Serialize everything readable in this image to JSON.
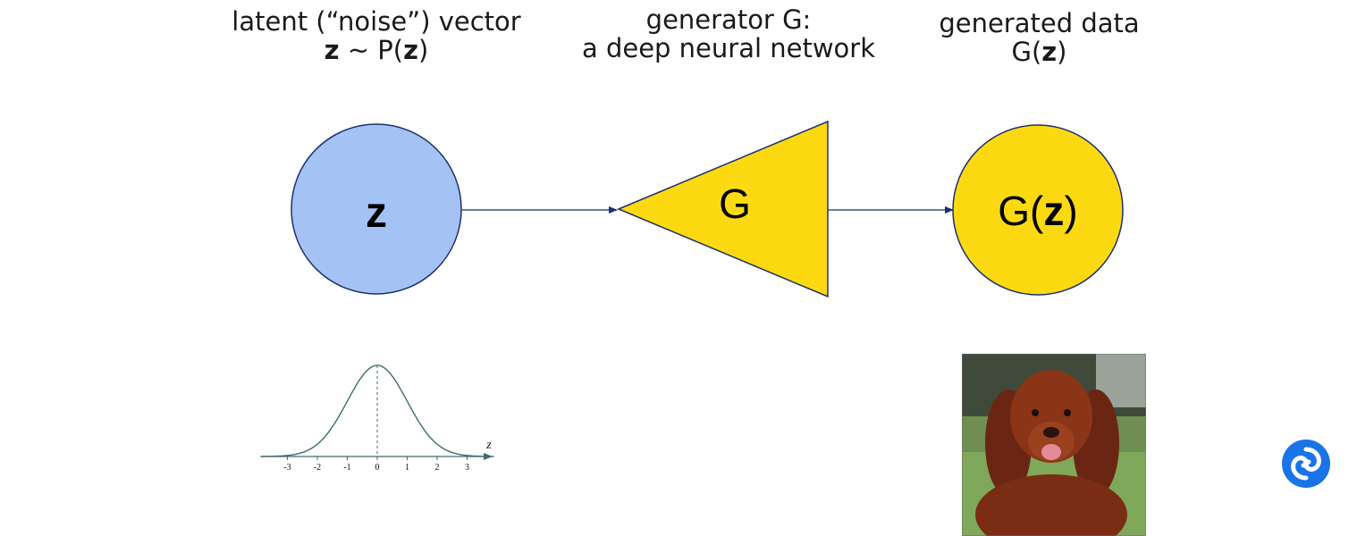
{
  "captions": {
    "latent_line1": "latent (“noise”) vector",
    "latent_line2_bold1": "z",
    "latent_line2_mid": " ~ P(",
    "latent_line2_bold2": "z",
    "latent_line2_end": ")",
    "generator_line1": "generator G:",
    "generator_line2": "a deep neural network",
    "generated_line1": "generated data",
    "generated_line2_start": "G(",
    "generated_line2_bold": "z",
    "generated_line2_end": ")"
  },
  "nodes": {
    "z_label": "z",
    "g_label": "G",
    "gz_start": "G(",
    "gz_bold": "z",
    "gz_end": ")"
  },
  "colors": {
    "z_fill": "#a4c2f4",
    "node_stroke": "#1c2f6e",
    "yellow_fill": "#fdd912",
    "arrow": "#1c2f6e",
    "curve": "#3d6b6e",
    "logo": "#1a73e8"
  },
  "gaussian": {
    "axis_label": "z",
    "ticks": [
      "-3",
      "-2",
      "-1",
      "0",
      "1",
      "2",
      "3"
    ]
  },
  "icons": {
    "photo": "dog-photo",
    "logo": "deepmind-logo-icon"
  }
}
